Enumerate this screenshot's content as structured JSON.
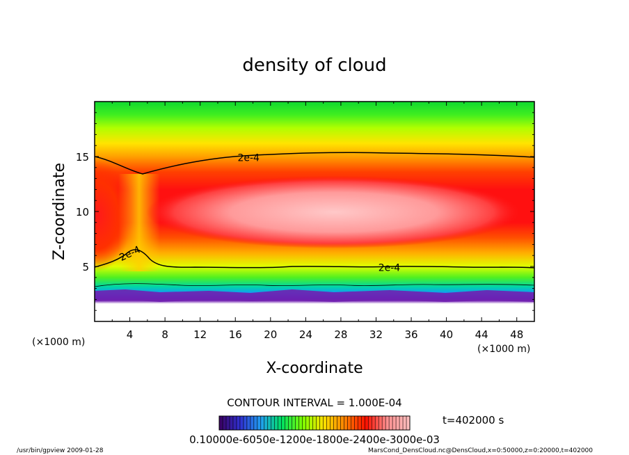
{
  "chart_data": {
    "type": "heatmap",
    "title": "density of cloud",
    "xlabel": "X-coordinate",
    "ylabel": "Z-coordinate",
    "x_unit": "(×1000 m)",
    "y_unit": "(×1000 m)",
    "xlim": [
      0,
      50
    ],
    "ylim": [
      0,
      20
    ],
    "x_ticks": [
      4,
      8,
      12,
      16,
      20,
      24,
      28,
      32,
      36,
      40,
      44,
      48
    ],
    "y_ticks": [
      5,
      10,
      15
    ],
    "contour_labels": [
      "2e-4",
      "2e-4",
      "2e-4"
    ],
    "contour_interval": "CONTOUR INTERVAL = 1.000E-04",
    "time_label": "t=402000 s",
    "colorbar_ticks": "0.10000e-6050e-1200e-1800e-2400e-3000e-03",
    "colorbar_colors": [
      "#3a0060",
      "#3030d0",
      "#20a0f0",
      "#00e060",
      "#80ff00",
      "#ffe000",
      "#ff8000",
      "#ff1000",
      "#ff9090",
      "#ffc0c0"
    ],
    "footer_left": "/usr/bin/gpview   2009-01-28",
    "footer_right": "MarsCond_DensCloud.nc@DensCloud,x=0:50000,z=0:20000,t=402000"
  }
}
